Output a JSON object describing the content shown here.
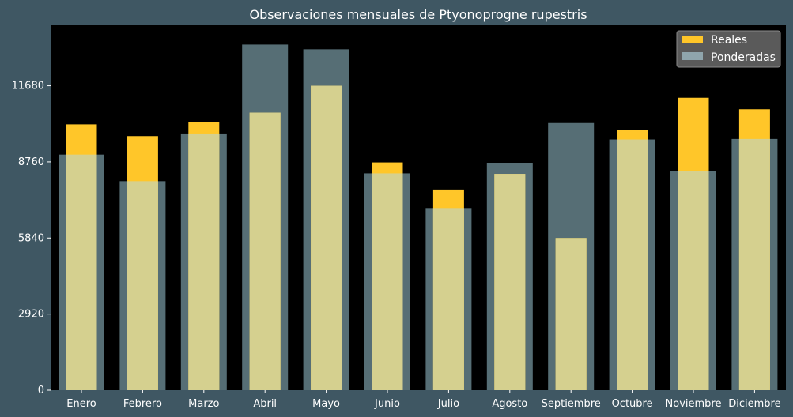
{
  "chart_data": {
    "type": "bar",
    "title": "Observaciones mensuales de Ptyonoprogne rupestris",
    "xlabel": "",
    "ylabel": "",
    "categories": [
      "Enero",
      "Febrero",
      "Marzo",
      "Abril",
      "Mayo",
      "Junio",
      "Julio",
      "Agosto",
      "Septiembre",
      "Octubre",
      "Noviembre",
      "Diciembre"
    ],
    "series": [
      {
        "name": "Reales",
        "color": "#ffc629",
        "values": [
          10200,
          9750,
          10280,
          10650,
          11680,
          8740,
          7700,
          8300,
          5840,
          10000,
          11220,
          10780
        ]
      },
      {
        "name": "Ponderadas",
        "color": "#8fa5ac",
        "values": [
          9040,
          8020,
          9820,
          13260,
          13080,
          8320,
          6960,
          8700,
          10250,
          9620,
          8420,
          9640
        ]
      }
    ],
    "ylim": [
      0,
      14000
    ],
    "yticks": [
      0,
      2920,
      5840,
      8760,
      11680
    ],
    "legend_position": "top-right",
    "grid": false,
    "colors": {
      "background": "#3f5763",
      "plot_area": "#000000",
      "text": "#ffffff",
      "legend_background": "#5a5a5a"
    }
  }
}
